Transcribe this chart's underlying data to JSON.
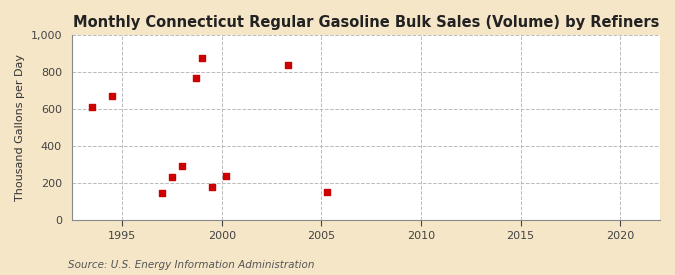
{
  "title": "Monthly Connecticut Regular Gasoline Bulk Sales (Volume) by Refiners",
  "ylabel": "Thousand Gallons per Day",
  "source": "Source: U.S. Energy Information Administration",
  "background_color": "#f5e6c8",
  "plot_background_color": "#ffffff",
  "x_data": [
    1993.5,
    1994.5,
    1997.0,
    1997.5,
    1998.0,
    1998.7,
    1999.0,
    1999.5,
    2000.2,
    2003.3,
    2005.3
  ],
  "y_data": [
    610,
    670,
    150,
    235,
    295,
    770,
    880,
    180,
    240,
    840,
    155
  ],
  "marker_color": "#cc0000",
  "marker_size": 18,
  "marker_style": "s",
  "xlim": [
    1992.5,
    2022
  ],
  "ylim": [
    0,
    1000
  ],
  "xticks": [
    1995,
    2000,
    2005,
    2010,
    2015,
    2020
  ],
  "yticks": [
    0,
    200,
    400,
    600,
    800,
    1000
  ],
  "ytick_labels": [
    "0",
    "200",
    "400",
    "600",
    "800",
    "1,000"
  ],
  "grid_color": "#bbbbbb",
  "grid_style": "--",
  "title_fontsize": 10.5,
  "label_fontsize": 8,
  "tick_fontsize": 8,
  "source_fontsize": 7.5
}
